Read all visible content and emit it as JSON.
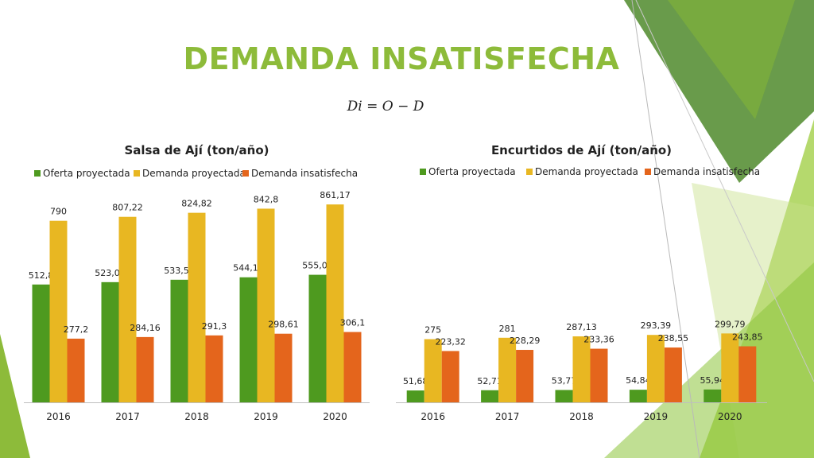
{
  "slide": {
    "title": "DEMANDA INSATISFECHA",
    "formula": "Di  = O − D",
    "colors": {
      "accent_green": "#8dbb3a",
      "oferta": "#4e9a1f",
      "demanda": "#e8b722",
      "insatisfecha": "#e4651c"
    }
  },
  "chart_data": [
    {
      "type": "bar",
      "title": "Salsa de Ají (ton/año)",
      "categories": [
        "2016",
        "2017",
        "2018",
        "2019",
        "2020"
      ],
      "legend_position": "top",
      "grid": false,
      "series": [
        {
          "name": "Oferta proyectada",
          "color": "#4e9a1f",
          "values": [
            512.8,
            523.06,
            533.52,
            544.19,
            555.07
          ],
          "labels": [
            "512,8",
            "523,06",
            "533,52",
            "544,19",
            "555,07"
          ]
        },
        {
          "name": "Demanda proyectada",
          "color": "#e8b722",
          "values": [
            790,
            807.22,
            824.82,
            842.8,
            861.17
          ],
          "labels": [
            "790",
            "807,22",
            "824,82",
            "842,8",
            "861,17"
          ]
        },
        {
          "name": "Demanda insatisfecha",
          "color": "#e4651c",
          "values": [
            277.2,
            284.16,
            291.3,
            298.61,
            306.1
          ],
          "labels": [
            "277,2",
            "284,16",
            "291,3",
            "298,61",
            "306,1"
          ]
        }
      ],
      "ylim": [
        0,
        1000
      ]
    },
    {
      "type": "bar",
      "title": "Encurtidos de Ají (ton/año)",
      "categories": [
        "2016",
        "2017",
        "2018",
        "2019",
        "2020"
      ],
      "legend_position": "top",
      "grid": false,
      "series": [
        {
          "name": "Oferta proyectada",
          "color": "#4e9a1f",
          "values": [
            51.68,
            52.71,
            53.77,
            54.84,
            55.94
          ],
          "labels": [
            "51,68",
            "52,71",
            "53,77",
            "54,84",
            "55,94"
          ]
        },
        {
          "name": "Demanda proyectada",
          "color": "#e8b722",
          "values": [
            275,
            281,
            287.13,
            293.39,
            299.79
          ],
          "labels": [
            "275",
            "281",
            "287,13",
            "293,39",
            "299,79"
          ]
        },
        {
          "name": "Demanda insatisfecha",
          "color": "#e4651c",
          "values": [
            223.32,
            228.29,
            233.36,
            238.55,
            243.85
          ],
          "labels": [
            "223,32",
            "228,29",
            "233,36",
            "238,55",
            "243,85"
          ]
        }
      ],
      "ylim": [
        0,
        1000
      ]
    }
  ]
}
